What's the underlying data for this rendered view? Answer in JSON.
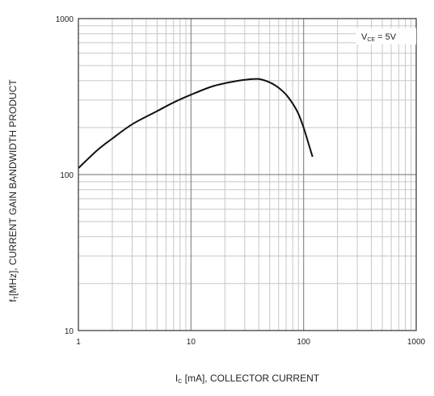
{
  "chart_data": {
    "type": "line",
    "xscale": "log",
    "yscale": "log",
    "xlim": [
      1,
      1000
    ],
    "ylim": [
      10,
      1000
    ],
    "grid": true,
    "x_ticks": [
      "1",
      "10",
      "100",
      "1000"
    ],
    "y_ticks": [
      "10",
      "100",
      "1000"
    ],
    "xlabel": {
      "main": "I",
      "sub": "C",
      "rest": " [mA], COLLECTOR CURRENT"
    },
    "ylabel": {
      "main": "f",
      "sub": "T",
      "rest": "[MHz], CURRENT GAIN BANDWIDTH PRODUCT"
    },
    "annotation": {
      "main": "V",
      "sub": "CE",
      "rest": " = 5V"
    },
    "series": [
      {
        "x": [
          1,
          1.5,
          2,
          3,
          5,
          7,
          10,
          15,
          20,
          30,
          40,
          50,
          60,
          70,
          80,
          90,
          100,
          110,
          120
        ],
        "y": [
          110,
          145,
          170,
          210,
          255,
          290,
          325,
          365,
          385,
          405,
          410,
          390,
          360,
          325,
          285,
          245,
          200,
          160,
          130
        ]
      }
    ]
  }
}
